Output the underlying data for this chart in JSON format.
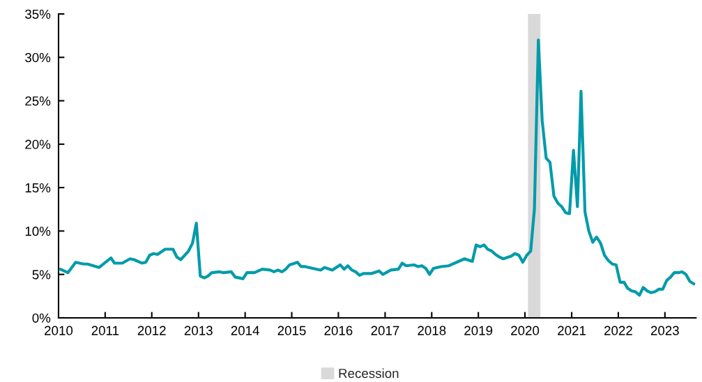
{
  "chart_data": {
    "type": "line",
    "x": [
      "2010-01-15",
      "2010-03-15",
      "2010-05-15",
      "2010-07-15",
      "2010-08-15",
      "2010-11-15",
      "2011-02-15",
      "2011-03-15",
      "2011-05-15",
      "2011-07-15",
      "2011-08-15",
      "2011-10-15",
      "2011-11-15",
      "2011-12-15",
      "2012-01-15",
      "2012-02-15",
      "2012-04-15",
      "2012-06-15",
      "2012-07-15",
      "2012-08-15",
      "2012-10-15",
      "2012-11-15",
      "2012-12-15",
      "2013-01-15",
      "2013-02-15",
      "2013-03-15",
      "2013-04-15",
      "2013-06-15",
      "2013-07-15",
      "2013-09-15",
      "2013-10-15",
      "2013-12-15",
      "2014-01-15",
      "2014-03-15",
      "2014-05-15",
      "2014-07-15",
      "2014-08-15",
      "2014-09-15",
      "2014-10-15",
      "2014-11-15",
      "2014-12-15",
      "2015-02-15",
      "2015-03-15",
      "2015-04-15",
      "2015-08-15",
      "2015-09-15",
      "2015-11-15",
      "2016-01-15",
      "2016-02-15",
      "2016-03-15",
      "2016-04-15",
      "2016-05-15",
      "2016-06-15",
      "2016-07-15",
      "2016-09-15",
      "2016-11-15",
      "2016-12-15",
      "2017-02-15",
      "2017-04-15",
      "2017-05-15",
      "2017-06-15",
      "2017-08-15",
      "2017-09-15",
      "2017-10-15",
      "2017-11-15",
      "2017-12-15",
      "2018-01-15",
      "2018-03-15",
      "2018-05-15",
      "2018-07-15",
      "2018-09-15",
      "2018-11-15",
      "2018-12-15",
      "2019-01-15",
      "2019-02-15",
      "2019-03-15",
      "2019-04-15",
      "2019-05-15",
      "2019-06-15",
      "2019-07-15",
      "2019-09-15",
      "2019-10-15",
      "2019-11-15",
      "2019-12-15",
      "2020-01-15",
      "2020-02-15",
      "2020-03-15",
      "2020-04-15",
      "2020-05-15",
      "2020-06-15",
      "2020-07-15",
      "2020-08-15",
      "2020-09-15",
      "2020-10-15",
      "2020-11-15",
      "2020-12-15",
      "2021-01-15",
      "2021-02-15",
      "2021-03-15",
      "2021-04-15",
      "2021-05-15",
      "2021-06-15",
      "2021-07-15",
      "2021-08-15",
      "2021-09-15",
      "2021-10-15",
      "2021-11-15",
      "2021-12-15",
      "2022-01-15",
      "2022-02-15",
      "2022-03-15",
      "2022-04-15",
      "2022-05-15",
      "2022-06-15",
      "2022-07-15",
      "2022-08-15",
      "2022-09-15",
      "2022-10-15",
      "2022-11-15",
      "2022-12-15",
      "2023-01-15",
      "2023-02-15",
      "2023-03-15",
      "2023-04-15",
      "2023-05-15",
      "2023-06-15",
      "2023-07-15",
      "2023-08-15"
    ],
    "series": [
      {
        "color": "#009baa",
        "values": [
          5.6,
          5.2,
          6.4,
          6.2,
          6.2,
          5.8,
          6.9,
          6.3,
          6.3,
          6.8,
          6.7,
          6.3,
          6.4,
          7.2,
          7.4,
          7.3,
          7.9,
          7.9,
          7.0,
          6.7,
          7.7,
          8.6,
          10.9,
          4.8,
          4.6,
          4.8,
          5.2,
          5.3,
          5.2,
          5.3,
          4.7,
          4.5,
          5.2,
          5.2,
          5.6,
          5.5,
          5.3,
          5.5,
          5.3,
          5.6,
          6.1,
          6.4,
          5.9,
          5.9,
          5.5,
          5.8,
          5.5,
          6.1,
          5.6,
          6.0,
          5.5,
          5.3,
          4.9,
          5.1,
          5.1,
          5.4,
          5.0,
          5.5,
          5.6,
          6.3,
          6.0,
          6.1,
          5.9,
          6.0,
          5.7,
          5.0,
          5.7,
          5.9,
          6.0,
          6.4,
          6.8,
          6.5,
          8.4,
          8.2,
          8.4,
          7.9,
          7.7,
          7.3,
          7.0,
          6.8,
          7.1,
          7.4,
          7.2,
          6.4,
          7.2,
          7.7,
          12.5,
          32.0,
          22.7,
          18.4,
          17.9,
          14.0,
          13.2,
          12.8,
          12.1,
          12.0,
          19.3,
          12.8,
          26.1,
          12.2,
          10.0,
          8.7,
          9.3,
          8.6,
          7.2,
          6.6,
          6.2,
          6.1,
          4.1,
          4.1,
          3.4,
          3.1,
          3.0,
          2.6,
          3.5,
          3.1,
          2.9,
          3.0,
          3.3,
          3.3,
          4.3,
          4.7,
          5.2,
          5.2,
          5.3,
          5.0,
          4.2,
          3.9
        ]
      }
    ],
    "xlim": [
      "2010-01-01",
      "2023-09-01"
    ],
    "xticks": [
      "2010",
      "2011",
      "2012",
      "2013",
      "2014",
      "2015",
      "2016",
      "2017",
      "2018",
      "2019",
      "2020",
      "2021",
      "2022",
      "2023"
    ],
    "ylim": [
      0,
      35
    ],
    "yticks": [
      {
        "value": 0,
        "label": "0%"
      },
      {
        "value": 5,
        "label": "5%"
      },
      {
        "value": 10,
        "label": "10%"
      },
      {
        "value": 15,
        "label": "15%"
      },
      {
        "value": 20,
        "label": "20%"
      },
      {
        "value": 25,
        "label": "25%"
      },
      {
        "value": 30,
        "label": "30%"
      },
      {
        "value": 35,
        "label": "35%"
      }
    ],
    "bands": [
      {
        "axis": "x",
        "from": "2020-01-25",
        "to": "2020-05-01",
        "label": "Recession",
        "color": "#d9d9d9"
      }
    ],
    "marker": "none",
    "line_style": "solid",
    "legend": "bottom"
  }
}
